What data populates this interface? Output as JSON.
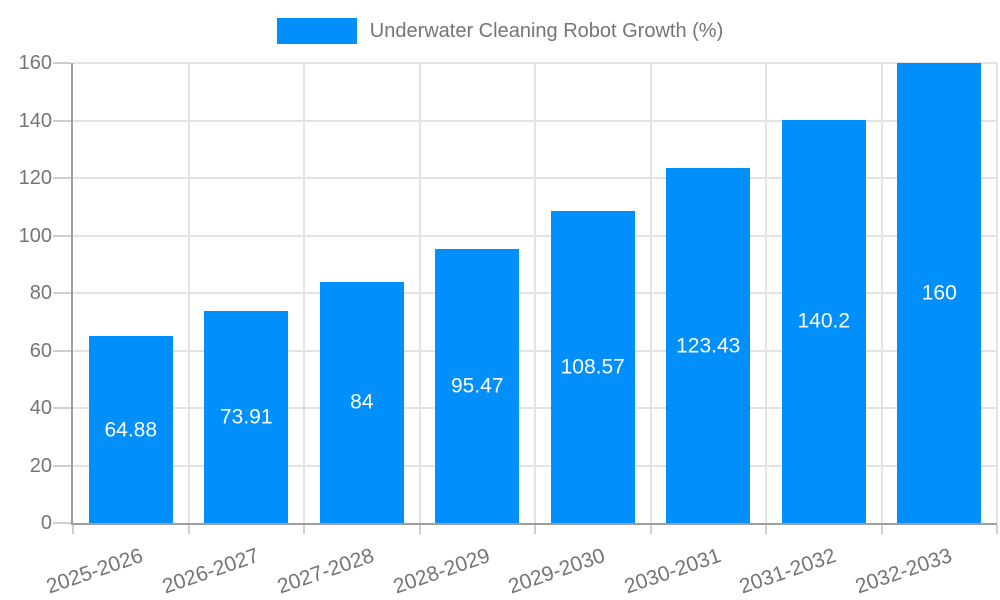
{
  "chart_data": {
    "type": "bar",
    "legend": {
      "position": "top",
      "label": "Underwater Cleaning Robot Growth (%)"
    },
    "categories": [
      "2025-2026",
      "2026-2027",
      "2027-2028",
      "2028-2029",
      "2029-2030",
      "2030-2031",
      "2031-2032",
      "2032-2033"
    ],
    "series": [
      {
        "name": "Underwater Cleaning Robot Growth (%)",
        "values": [
          64.88,
          73.91,
          84,
          95.47,
          108.57,
          123.43,
          140.2,
          160
        ],
        "labels": [
          "64.88",
          "73.91",
          "84",
          "95.47",
          "108.57",
          "123.43",
          "140.2",
          "160"
        ]
      }
    ],
    "xlabel": "",
    "ylabel": "",
    "ylim": [
      0,
      160
    ],
    "yticks": [
      0,
      20,
      40,
      60,
      80,
      100,
      120,
      140,
      160
    ],
    "grid": true,
    "colors": {
      "bar": "#008FFB",
      "bar_label": "#FFFFFF",
      "axis_text": "#757575",
      "grid_line": "#E3E3E3",
      "axis_line": "#9E9E9E",
      "tick": "#CFCFCF"
    }
  }
}
